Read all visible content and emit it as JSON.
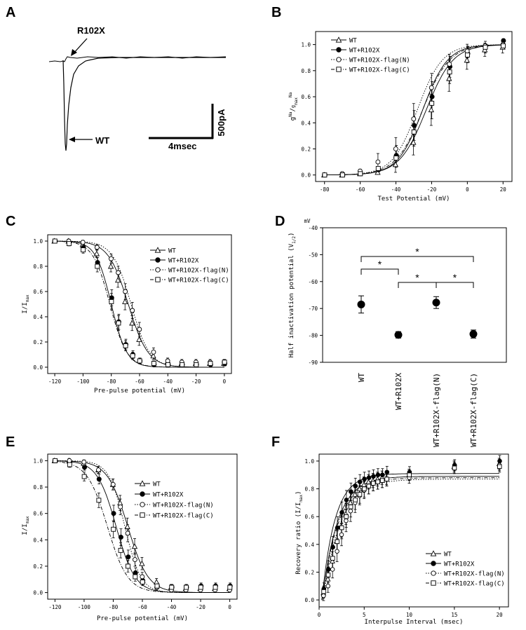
{
  "panel_labels": {
    "a": "A",
    "b": "B",
    "c": "C",
    "d": "D",
    "e": "E",
    "f": "F"
  },
  "chart_data": [
    {
      "panel": "A",
      "type": "line",
      "title": "",
      "annotations": {
        "mutant": "R102X",
        "wt": "WT"
      },
      "scalebar": {
        "time": "4msec",
        "current": "500pA"
      }
    },
    {
      "panel": "B",
      "type": "scatter",
      "xlabel": "Test Potential (mV)",
      "ylabel": "g^Na / g^Na_max",
      "xlim": [
        -85,
        25
      ],
      "ylim": [
        -0.05,
        1.1
      ],
      "xticks": [
        -80,
        -60,
        -40,
        -20,
        0,
        20
      ],
      "xtick_labels": [
        "-80",
        "-60",
        "-40",
        "-20",
        "0",
        "20"
      ],
      "yticks": [
        0,
        0.2,
        0.4,
        0.6,
        0.8,
        1.0
      ],
      "ytick_labels": [
        "0.0",
        "0.2",
        "0.4",
        "0.6",
        "0.8",
        "1.0"
      ],
      "x": [
        -80,
        -70,
        -60,
        -50,
        -40,
        -30,
        -20,
        -10,
        0,
        10,
        20
      ],
      "series": [
        {
          "name": "WT",
          "marker": "tri-open",
          "dash": "solid",
          "values": [
            0.0,
            0.0,
            0.01,
            0.02,
            0.08,
            0.25,
            0.5,
            0.74,
            0.88,
            0.96,
            0.98
          ],
          "fit": {
            "v50": -23,
            "k": 7.5
          }
        },
        {
          "name": "WT+R102X",
          "marker": "circle-filled",
          "dash": "solid",
          "values": [
            0.0,
            0.0,
            0.01,
            0.04,
            0.15,
            0.38,
            0.6,
            0.83,
            0.93,
            0.99,
            1.03
          ],
          "fit": {
            "v50": -25,
            "k": 7
          }
        },
        {
          "name": "WT+R102X-flag(N)",
          "marker": "circle-open",
          "dash": "dotted",
          "values": [
            0.0,
            0.01,
            0.03,
            0.1,
            0.2,
            0.43,
            0.67,
            0.85,
            0.95,
            0.99,
            1.0
          ],
          "fit": {
            "v50": -28,
            "k": 7
          }
        },
        {
          "name": "WT+R102X-flag(C)",
          "marker": "square-open",
          "dash": "dashdot",
          "values": [
            0.0,
            0.0,
            0.01,
            0.05,
            0.13,
            0.33,
            0.55,
            0.79,
            0.92,
            0.98,
            0.99
          ],
          "fit": {
            "v50": -25,
            "k": 7.5
          }
        }
      ],
      "legend": "top-left"
    },
    {
      "panel": "C",
      "type": "scatter",
      "xlabel": "Pre-pulse potential (mV)",
      "ylabel": "I/I_max",
      "xlim": [
        -125,
        5
      ],
      "ylim": [
        -0.05,
        1.05
      ],
      "xticks": [
        -120,
        -100,
        -80,
        -60,
        -40,
        -20,
        0
      ],
      "xtick_labels": [
        "-120",
        "-100",
        "-80",
        "-60",
        "-40",
        "-20",
        "0"
      ],
      "yticks": [
        0,
        0.2,
        0.4,
        0.6,
        0.8,
        1.0
      ],
      "ytick_labels": [
        "0.0",
        "0.2",
        "0.4",
        "0.6",
        "0.8",
        "1.0"
      ],
      "x": [
        -120,
        -110,
        -100,
        -90,
        -80,
        -75,
        -70,
        -65,
        -60,
        -50,
        -40,
        -30,
        -20,
        -10,
        0
      ],
      "series": [
        {
          "name": "WT",
          "marker": "tri-open",
          "dash": "solid",
          "values": [
            1.0,
            1.0,
            0.97,
            0.9,
            0.8,
            0.69,
            0.52,
            0.35,
            0.22,
            0.09,
            0.04,
            0.03,
            0.03,
            0.03,
            0.03
          ],
          "fit": {
            "v50": -68,
            "k": 7
          }
        },
        {
          "name": "WT+R102X",
          "marker": "circle-filled",
          "dash": "solid",
          "values": [
            1.0,
            0.99,
            0.95,
            0.83,
            0.55,
            0.36,
            0.18,
            0.1,
            0.05,
            0.02,
            0.02,
            0.02,
            0.02,
            0.02,
            0.03
          ],
          "fit": {
            "v50": -80,
            "k": 5.5
          }
        },
        {
          "name": "WT+R102X-flag(N)",
          "marker": "circle-open",
          "dash": "dotted",
          "values": [
            1.0,
            1.0,
            0.99,
            0.95,
            0.86,
            0.75,
            0.6,
            0.45,
            0.3,
            0.12,
            0.05,
            0.04,
            0.04,
            0.04,
            0.04
          ],
          "fit": {
            "v50": -66,
            "k": 6.5
          }
        },
        {
          "name": "WT+R102X-flag(C)",
          "marker": "square-open",
          "dash": "dashdot",
          "values": [
            1.0,
            0.98,
            0.93,
            0.8,
            0.52,
            0.35,
            0.17,
            0.09,
            0.05,
            0.03,
            0.02,
            0.02,
            0.02,
            0.03,
            0.04
          ],
          "fit": {
            "v50": -81,
            "k": 6
          }
        }
      ],
      "legend": "top-right"
    },
    {
      "panel": "D",
      "type": "scatter",
      "ylabel": "Half inactivation potential (V1/2)",
      "yunit": "mV",
      "ylim": [
        -90,
        -40
      ],
      "yticks": [
        -90,
        -80,
        -70,
        -60,
        -50,
        -40
      ],
      "ytick_labels": [
        "-90",
        "-80",
        "-70",
        "-60",
        "-50",
        "-40"
      ],
      "categories": [
        "WT",
        "WT+R102X",
        "WT+R102X-flag(N)",
        "WT+R102X-flag(C)"
      ],
      "values": [
        -68.5,
        -79.8,
        -67.8,
        -79.5
      ],
      "errors": [
        3.2,
        1.2,
        2.2,
        1.5
      ],
      "significance": [
        {
          "from": 0,
          "to": 3,
          "label": "*"
        },
        {
          "from": 0,
          "to": 1,
          "label": "*"
        },
        {
          "from": 1,
          "to": 2,
          "label": "*"
        },
        {
          "from": 2,
          "to": 3,
          "label": "*"
        }
      ]
    },
    {
      "panel": "E",
      "type": "scatter",
      "xlabel": "Pre-pulse potential (mV)",
      "ylabel": "I/I_max",
      "xlim": [
        -125,
        5
      ],
      "ylim": [
        -0.05,
        1.05
      ],
      "xticks": [
        -120,
        -100,
        -80,
        -60,
        -40,
        -20,
        0
      ],
      "xtick_labels": [
        "-120",
        "-100",
        "-80",
        "-60",
        "-40",
        "-20",
        "0"
      ],
      "yticks": [
        0,
        0.2,
        0.4,
        0.6,
        0.8,
        1.0
      ],
      "ytick_labels": [
        "0.0",
        "0.2",
        "0.4",
        "0.6",
        "0.8",
        "1.0"
      ],
      "x": [
        -120,
        -110,
        -100,
        -90,
        -80,
        -75,
        -70,
        -65,
        -60,
        -50,
        -40,
        -30,
        -20,
        -10,
        0
      ],
      "series": [
        {
          "name": "WT",
          "marker": "tri-open",
          "dash": "solid",
          "values": [
            1.0,
            1.0,
            0.98,
            0.93,
            0.82,
            0.68,
            0.5,
            0.35,
            0.22,
            0.08,
            0.04,
            0.03,
            0.03,
            0.03,
            0.03
          ],
          "fit": {
            "v50": -70,
            "k": 7
          }
        },
        {
          "name": "WT+R102X",
          "marker": "circle-filled",
          "dash": "solid",
          "values": [
            1.0,
            0.99,
            0.95,
            0.86,
            0.6,
            0.42,
            0.27,
            0.15,
            0.09,
            0.05,
            0.04,
            0.04,
            0.05,
            0.05,
            0.05
          ],
          "fit": {
            "v50": -78,
            "k": 6.5
          }
        },
        {
          "name": "WT+R102X-flag(N)",
          "marker": "circle-open",
          "dash": "dotted",
          "values": [
            1.0,
            1.0,
            0.99,
            0.93,
            0.82,
            0.65,
            0.45,
            0.25,
            0.12,
            0.04,
            0.02,
            0.02,
            0.02,
            0.02,
            0.02
          ],
          "fit": {
            "v50": -72,
            "k": 5.5
          }
        },
        {
          "name": "WT+R102X-flag(C)",
          "marker": "square-open",
          "dash": "dashdot",
          "values": [
            1.0,
            0.97,
            0.88,
            0.7,
            0.48,
            0.32,
            0.2,
            0.12,
            0.08,
            0.05,
            0.04,
            0.04,
            0.04,
            0.04,
            0.04
          ],
          "fit": {
            "v50": -84,
            "k": 7
          }
        }
      ],
      "legend": "center-right"
    },
    {
      "panel": "F",
      "type": "scatter",
      "xlabel": "Interpulse Interval (msec)",
      "ylabel": "Recovery ratio (I/I_max)",
      "xlim": [
        0,
        21
      ],
      "ylim": [
        -0.05,
        1.05
      ],
      "xticks": [
        0,
        5,
        10,
        15,
        20
      ],
      "xtick_labels": [
        "0",
        "5",
        "10",
        "15",
        "20"
      ],
      "yticks": [
        0,
        0.2,
        0.4,
        0.6,
        0.8,
        1.0
      ],
      "ytick_labels": [
        "0.0",
        "0.2",
        "0.4",
        "0.6",
        "0.8",
        "1.0"
      ],
      "x": [
        0.5,
        1,
        1.5,
        2,
        2.5,
        3,
        3.5,
        4,
        4.5,
        5,
        5.5,
        6,
        6.5,
        7,
        7.5,
        10,
        15,
        20
      ],
      "series": [
        {
          "name": "WT",
          "marker": "tri-open",
          "dash": "solid",
          "values": [
            0.05,
            0.15,
            0.28,
            0.42,
            0.53,
            0.62,
            0.7,
            0.76,
            0.8,
            0.83,
            0.85,
            0.86,
            0.87,
            0.88,
            0.88,
            0.9,
            0.96,
            0.98
          ],
          "fit": {
            "plateau": 0.89,
            "tau": 1.7,
            "x0": 0.35
          }
        },
        {
          "name": "WT+R102X",
          "marker": "circle-filled",
          "dash": "solid",
          "values": [
            0.08,
            0.22,
            0.38,
            0.52,
            0.63,
            0.72,
            0.78,
            0.82,
            0.85,
            0.87,
            0.88,
            0.89,
            0.9,
            0.9,
            0.92,
            0.92,
            0.97,
            1.0
          ],
          "fit": {
            "plateau": 0.91,
            "tau": 1.45,
            "x0": 0.3
          }
        },
        {
          "name": "WT+R102X-flag(N)",
          "marker": "circle-open",
          "dash": "dotted",
          "values": [
            0.03,
            0.1,
            0.22,
            0.35,
            0.47,
            0.57,
            0.64,
            0.7,
            0.75,
            0.79,
            0.82,
            0.84,
            0.85,
            0.86,
            0.87,
            0.88,
            0.95,
            0.97
          ],
          "fit": {
            "plateau": 0.87,
            "tau": 1.9,
            "x0": 0.45
          }
        },
        {
          "name": "WT+R102X-flag(C)",
          "marker": "square-open",
          "dash": "dashdot",
          "values": [
            0.06,
            0.18,
            0.3,
            0.42,
            0.52,
            0.6,
            0.67,
            0.72,
            0.76,
            0.8,
            0.82,
            0.84,
            0.85,
            0.86,
            0.87,
            0.9,
            0.95,
            0.96
          ],
          "fit": {
            "plateau": 0.88,
            "tau": 1.8,
            "x0": 0.35
          }
        }
      ],
      "legend": "bottom-center"
    }
  ]
}
